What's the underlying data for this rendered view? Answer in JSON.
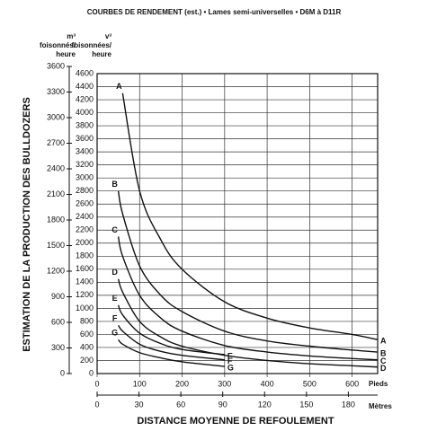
{
  "chart_data": {
    "type": "line",
    "title": "COURBES DE RENDEMENT (est.) • Lames semi-universelles • D6M à D11R",
    "y_title": "ESTIMATION DE LA PRODUCTION DES BULLDOZERS",
    "y_unit_label": "v³ foisonnées/ heure",
    "y2_unit_label": "m³ foisonnés/ heure",
    "x_title": "DISTANCE MOYENNE DE REFOULEMENT",
    "x_unit_label": "Pieds",
    "x2_unit_label": "Mètres",
    "color": "#111111",
    "grid": true,
    "x": [
      50,
      60,
      100,
      150,
      200,
      300,
      400,
      500,
      600,
      660
    ],
    "series": [
      {
        "name": "A",
        "values": [
          null,
          4300,
          2800,
          2050,
          1600,
          1100,
          850,
          700,
          600,
          520
        ]
      },
      {
        "name": "B",
        "values": [
          2800,
          2450,
          1650,
          1200,
          950,
          650,
          500,
          420,
          360,
          330
        ]
      },
      {
        "name": "C",
        "values": [
          2100,
          1800,
          1200,
          850,
          650,
          430,
          330,
          270,
          230,
          210
        ]
      },
      {
        "name": "D",
        "values": [
          1450,
          1250,
          800,
          560,
          420,
          280,
          200,
          150,
          120,
          100
        ]
      },
      {
        "name": "E",
        "values": [
          1050,
          900,
          620,
          460,
          370,
          290,
          null,
          null,
          null,
          null
        ]
      },
      {
        "name": "F",
        "values": [
          740,
          650,
          450,
          340,
          280,
          210,
          null,
          null,
          null,
          null
        ]
      },
      {
        "name": "G",
        "values": [
          520,
          450,
          320,
          240,
          180,
          110,
          null,
          null,
          null,
          null
        ]
      }
    ],
    "xlim": [
      0,
      660
    ],
    "xticks": [
      0,
      100,
      200,
      300,
      400,
      500,
      600
    ],
    "x2lim": [
      0,
      201
    ],
    "x2ticks": [
      0,
      30,
      60,
      90,
      120,
      150,
      180
    ],
    "ylim": [
      0,
      4600
    ],
    "yticks": [
      0,
      200,
      400,
      600,
      800,
      1000,
      1200,
      1400,
      1600,
      1800,
      2000,
      2200,
      2400,
      2600,
      2800,
      3000,
      3200,
      3400,
      3600,
      3800,
      4000,
      4200,
      4400,
      4600
    ],
    "y2lim": [
      0,
      3600
    ],
    "y2ticks": [
      0,
      300,
      600,
      900,
      1200,
      1500,
      1800,
      2100,
      2400,
      2700,
      3000,
      3300,
      3600
    ]
  }
}
